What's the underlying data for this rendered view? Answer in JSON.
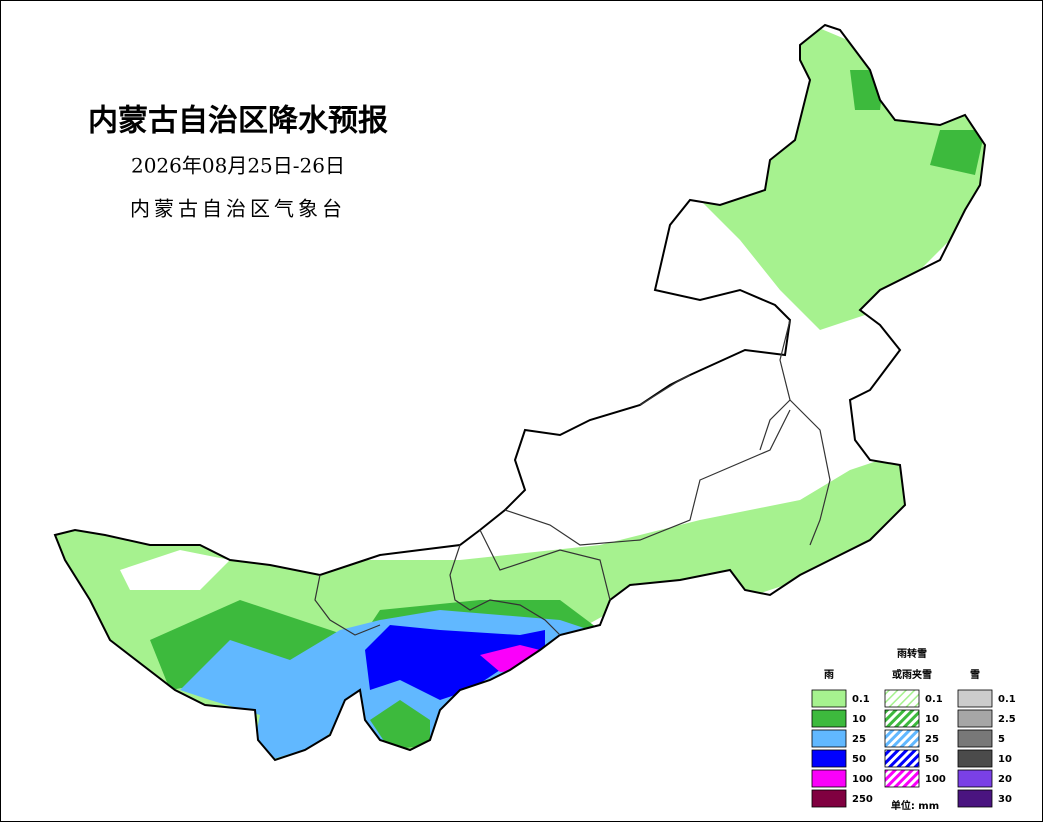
{
  "header": {
    "title": "内蒙古自治区降水预报",
    "date": "2026年08月25日-26日",
    "issuer": "内蒙古自治区气象台"
  },
  "legend": {
    "rain": {
      "title": "雨",
      "items": [
        {
          "label": "0.1",
          "color": "#a6f28f"
        },
        {
          "label": "10",
          "color": "#3dba3d"
        },
        {
          "label": "25",
          "color": "#61b8ff"
        },
        {
          "label": "50",
          "color": "#0000fe"
        },
        {
          "label": "100",
          "color": "#fa00fa"
        },
        {
          "label": "250",
          "color": "#800040"
        }
      ]
    },
    "mixed": {
      "title_lines": [
        "雨转雪",
        "或雨夹雪"
      ],
      "items": [
        {
          "label": "0.1",
          "color": "#a6f28f"
        },
        {
          "label": "10",
          "color": "#3dba3d"
        },
        {
          "label": "25",
          "color": "#61b8ff"
        },
        {
          "label": "50",
          "color": "#0000fe"
        },
        {
          "label": "100",
          "color": "#fa00fa"
        }
      ]
    },
    "snow": {
      "title": "雪",
      "items": [
        {
          "label": "0.1",
          "color": "#cccccc"
        },
        {
          "label": "2.5",
          "color": "#a6a6a6"
        },
        {
          "label": "5",
          "color": "#787878"
        },
        {
          "label": "10",
          "color": "#4b4b4b"
        },
        {
          "label": "20",
          "color": "#7a40e6"
        },
        {
          "label": "30",
          "color": "#4a1480"
        }
      ]
    },
    "unit": "单位: mm"
  }
}
